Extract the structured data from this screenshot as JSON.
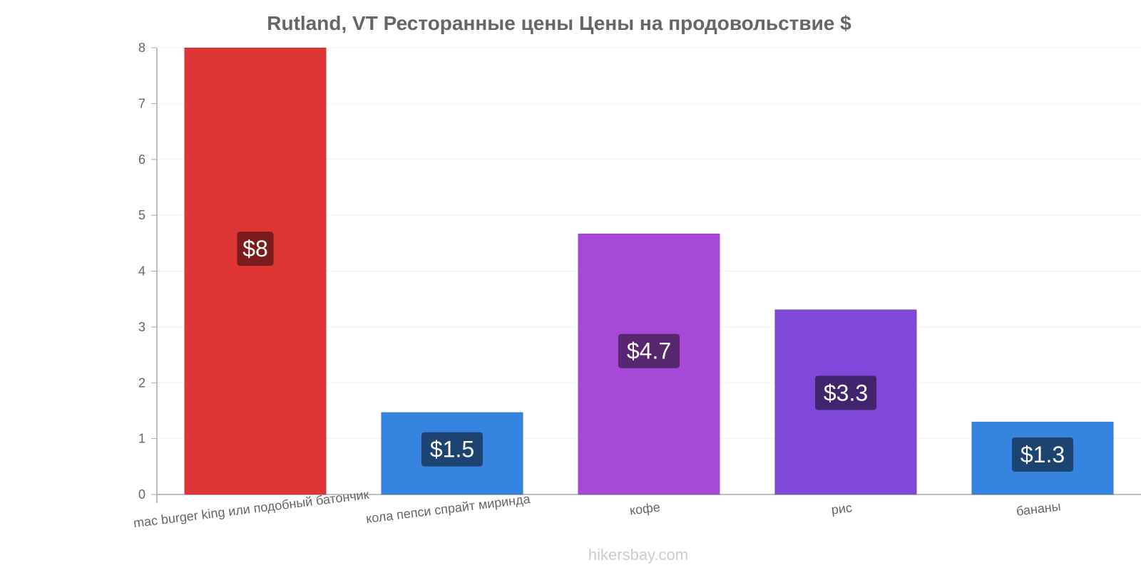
{
  "chart_data": {
    "type": "bar",
    "title": "Rutland, VT Ресторанные цены Цены на продовольствие $",
    "categories": [
      "mac burger king или подобный батончик",
      "кола пепси спрайт миринда",
      "кофе",
      "рис",
      "бананы"
    ],
    "values": [
      8,
      1.47,
      4.67,
      3.31,
      1.3
    ],
    "value_labels": [
      "$8",
      "$1.5",
      "$4.7",
      "$3.3",
      "$1.3"
    ],
    "bar_colors": [
      "#e03535",
      "#3584e0",
      "#a649d9",
      "#7f48d9",
      "#3584e0"
    ],
    "label_bg_colors": [
      "#7a1c1c",
      "#1d4370",
      "#56266e",
      "#40246e",
      "#1d4370"
    ],
    "ylim": [
      0,
      8
    ],
    "yticks": [
      0,
      1,
      2,
      3,
      4,
      5,
      6,
      7,
      8
    ],
    "xlabel": "",
    "ylabel": "",
    "grid": true,
    "legend": "none"
  },
  "watermark": "hikersbay.com"
}
